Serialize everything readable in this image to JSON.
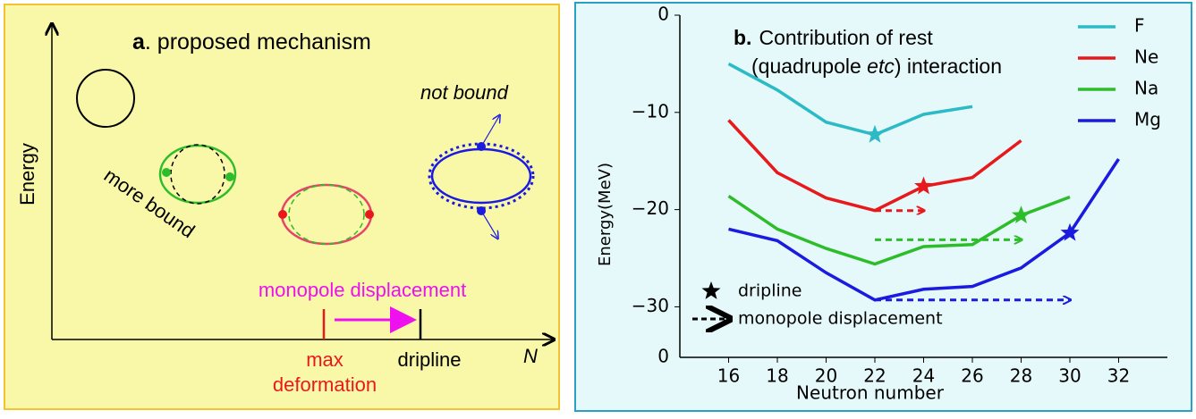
{
  "diagram": {
    "title": [
      "a",
      ". proposed mechanism"
    ],
    "y_axis_label": "Energy",
    "x_axis_label": "N",
    "more_bound": "more bound",
    "not_bound": "not bound",
    "displacement": "monopole displacement",
    "max_deformation": [
      "max",
      "deformation"
    ],
    "dripline": "dripline"
  },
  "chart_data": {
    "type": "line",
    "title": [
      "b.",
      "Contribution of rest",
      "(quadrupole ",
      "etc",
      ") interaction"
    ],
    "x_label": "Neutron number",
    "y_label": "Energy(MeV)",
    "origin_label": "0",
    "x": [
      16,
      18,
      20,
      22,
      24,
      26,
      28,
      30,
      32
    ],
    "xlim": [
      14,
      34
    ],
    "xticks": [
      16,
      18,
      20,
      22,
      24,
      26,
      28,
      30,
      32
    ],
    "ylim": [
      -35.2,
      0
    ],
    "yticks": [
      0,
      {
        "value": -10,
        "label": "−10"
      },
      {
        "value": -20,
        "label": "−20"
      },
      {
        "value": -30,
        "label": "−30"
      }
    ],
    "legend": "upper right",
    "series": [
      {
        "name": "F",
        "color": "#2bbac6",
        "values": [
          -5,
          -7.7,
          -11,
          -12.3,
          -10.2,
          -9.4,
          null,
          null,
          null
        ],
        "dripline": {
          "x": 22,
          "y": -12.3
        }
      },
      {
        "name": "Ne",
        "color": "#e8191c",
        "values": [
          -10.8,
          -16.2,
          -18.8,
          -20.1,
          -17.6,
          -16.7,
          -12.9,
          null,
          null
        ],
        "dripline": {
          "x": 24,
          "y": -17.6
        },
        "displacement": {
          "from": 22,
          "to": 24,
          "y": -20.1
        }
      },
      {
        "name": "Na",
        "color": "#2dbd2a",
        "values": [
          -18.6,
          -22,
          -24,
          -25.6,
          -23.8,
          -23.6,
          -20.6,
          -18.7,
          null
        ],
        "dripline": {
          "x": 28,
          "y": -20.6
        },
        "displacement": {
          "from": 22,
          "to": 28,
          "y": -23.1
        }
      },
      {
        "name": "Mg",
        "color": "#1a1ae0",
        "values": [
          -22,
          -23.2,
          -26.5,
          -29.3,
          -28.2,
          -27.9,
          -26,
          -22.4,
          -14.8
        ],
        "dripline": {
          "x": 30,
          "y": -22.4
        },
        "displacement": {
          "from": 22,
          "to": 30,
          "y": -29.3
        }
      }
    ],
    "marker_legend": [
      "dripline",
      "monopole displacement"
    ]
  }
}
